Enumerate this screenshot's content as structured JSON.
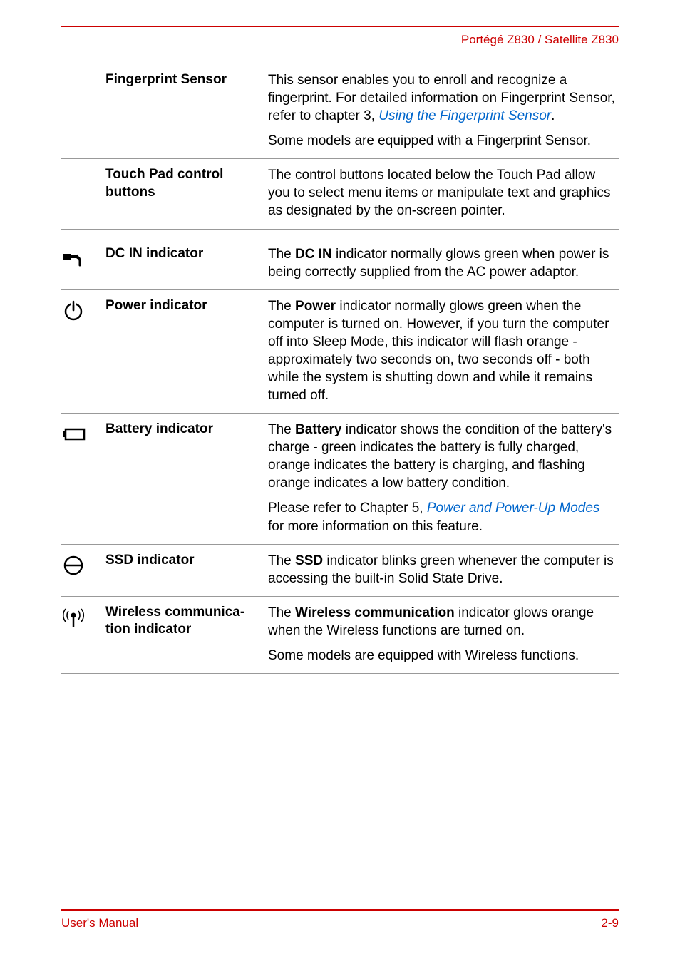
{
  "colors": {
    "accent": "#cc0000",
    "link": "#0066cc",
    "rule": "#999999",
    "text": "#000000"
  },
  "header": "Portégé Z830 / Satellite Z830",
  "footer": {
    "left": "User's Manual",
    "right": "2-9"
  },
  "rows": [
    {
      "icon": null,
      "label": "Fingerprint Sensor",
      "paragraphs": [
        {
          "parts": [
            {
              "t": "This sensor enables you to enroll and recognize a fingerprint. For detailed information on Fingerprint Sensor, refer to chapter 3, "
            },
            {
              "t": "Using the Fingerprint Sensor",
              "link": true
            },
            {
              "t": "."
            }
          ]
        },
        {
          "parts": [
            {
              "t": "Some models are equipped with a Fingerprint Sensor."
            }
          ]
        }
      ]
    },
    {
      "icon": null,
      "label": "Touch Pad control buttons",
      "paragraphs": [
        {
          "parts": [
            {
              "t": "The control buttons located below the Touch Pad allow you to select menu items or manipulate text and graphics as designated by the on-screen pointer."
            }
          ]
        }
      ]
    },
    {
      "icon": "dc-in",
      "label": "DC IN indicator",
      "paragraphs": [
        {
          "parts": [
            {
              "t": "The "
            },
            {
              "t": "DC IN",
              "bold": true
            },
            {
              "t": " indicator normally glows green when power is being correctly supplied from the AC power adaptor."
            }
          ]
        }
      ]
    },
    {
      "icon": "power",
      "label": "Power indicator",
      "paragraphs": [
        {
          "parts": [
            {
              "t": "The "
            },
            {
              "t": "Power",
              "bold": true
            },
            {
              "t": " indicator normally glows green when the computer is turned on. However, if you turn the computer off into Sleep Mode, this indicator will flash orange - approximately two seconds on, two seconds off - both while the system is shutting down and while it remains turned off."
            }
          ]
        }
      ]
    },
    {
      "icon": "battery",
      "label": "Battery indicator",
      "paragraphs": [
        {
          "parts": [
            {
              "t": "The "
            },
            {
              "t": "Battery",
              "bold": true
            },
            {
              "t": " indicator shows the condition of the battery's charge - green indicates the battery is fully charged, orange indicates the battery is charging, and flashing orange indicates a low battery condition."
            }
          ]
        },
        {
          "parts": [
            {
              "t": "Please refer to Chapter 5, "
            },
            {
              "t": "Power and Power-Up Modes",
              "link": true
            },
            {
              "t": " for more information on this feature."
            }
          ]
        }
      ]
    },
    {
      "icon": "ssd",
      "label": "SSD indicator",
      "paragraphs": [
        {
          "parts": [
            {
              "t": "The "
            },
            {
              "t": "SSD",
              "bold": true
            },
            {
              "t": " indicator blinks green whenever the computer is accessing the built-in Solid State Drive."
            }
          ]
        }
      ]
    },
    {
      "icon": "wireless",
      "label": "Wireless communica­tion indicator",
      "paragraphs": [
        {
          "parts": [
            {
              "t": "The "
            },
            {
              "t": "Wireless communication",
              "bold": true
            },
            {
              "t": " indicator glows orange when the Wireless functions are turned on."
            }
          ]
        },
        {
          "parts": [
            {
              "t": "Some models are equipped with Wireless functions."
            }
          ]
        }
      ]
    }
  ]
}
